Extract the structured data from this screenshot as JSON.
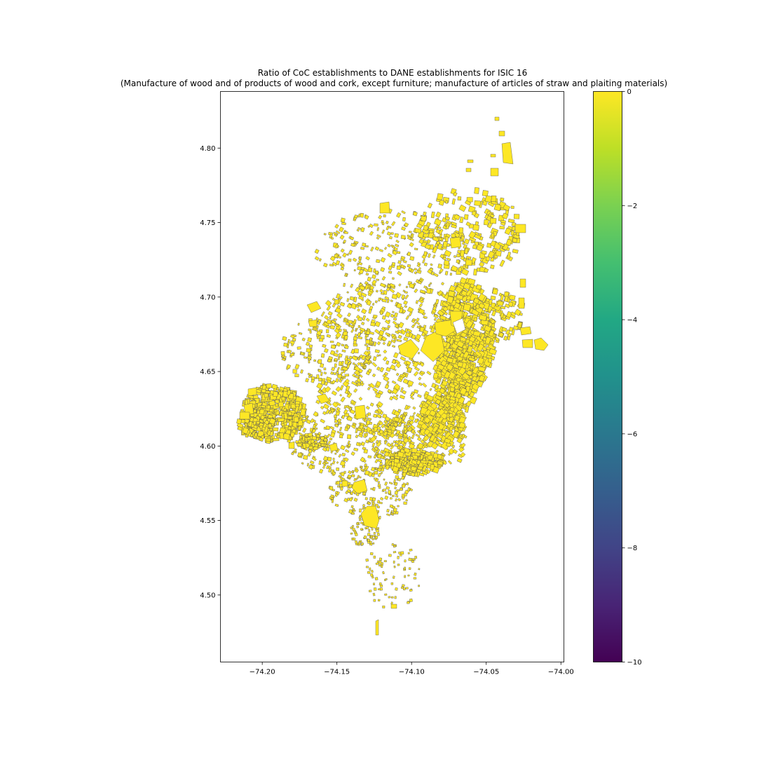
{
  "chart_data": {
    "type": "choropleth",
    "title": "Ratio of CoC establishments to DANE establishments for ISIC 16",
    "subtitle": "(Manufacture of wood and of products of wood and cork, except furniture; manufacture of articles of straw and plaiting materials)",
    "xlabel": "",
    "ylabel": "",
    "xlim": [
      -74.228,
      -73.998
    ],
    "ylim": [
      4.455,
      4.838
    ],
    "x_ticks": [
      -74.2,
      -74.15,
      -74.1,
      -74.05,
      -74.0
    ],
    "x_tick_labels": [
      "−74.20",
      "−74.15",
      "−74.10",
      "−74.05",
      "−74.00"
    ],
    "y_ticks": [
      4.5,
      4.55,
      4.6,
      4.65,
      4.7,
      4.75,
      4.8
    ],
    "y_tick_labels": [
      "4.50",
      "4.55",
      "4.60",
      "4.65",
      "4.70",
      "4.75",
      "4.80"
    ],
    "colorbar": {
      "colormap": "viridis",
      "range": [
        -10,
        0
      ],
      "ticks": [
        0,
        -2,
        -4,
        -6,
        -8,
        -10
      ],
      "tick_labels": [
        "0",
        "−2",
        "−4",
        "−6",
        "−8",
        "−10"
      ]
    },
    "value_all_polygons": 0,
    "fill_color": "#fde725",
    "edge_color": "#555555",
    "grid": false,
    "legend": "colorbar-right"
  }
}
